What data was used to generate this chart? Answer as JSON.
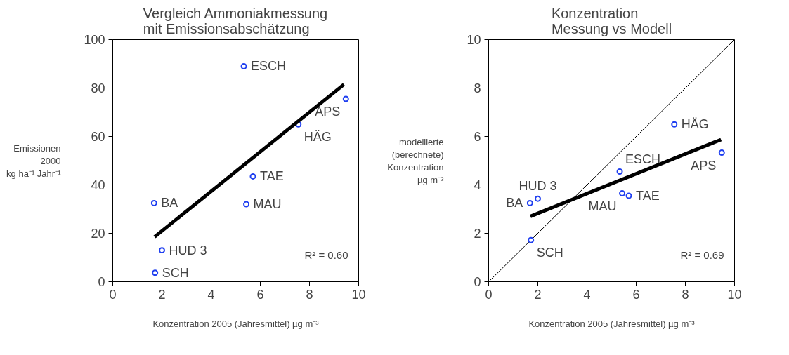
{
  "chart_data": [
    {
      "type": "scatter",
      "title": "Vergleich Ammoniakmessung\nmit Emissionsabschätzung",
      "xlabel": "Konzentration 2005 (Jahresmittel) µg m⁻³",
      "ylabel": "Emissionen\n2000\nkg ha⁻¹ Jahr⁻¹",
      "xlim": [
        0,
        10
      ],
      "ylim": [
        0,
        100
      ],
      "xticks": [
        0,
        2,
        4,
        6,
        8,
        10
      ],
      "yticks": [
        0,
        20,
        40,
        60,
        80,
        100
      ],
      "grid": false,
      "series": [
        {
          "color": "#1f3ff0",
          "marker": "circle",
          "x": [
            5.33,
            9.48,
            7.55,
            5.7,
            1.68,
            5.43,
            2.0,
            1.72
          ],
          "values": [
            89,
            75.5,
            65,
            43.5,
            32.5,
            32,
            13,
            3.7
          ]
        },
        {
          "type": "line",
          "marker": "none",
          "color": "#000000",
          "x": [
            1.7,
            9.4
          ],
          "values": [
            18.5,
            81.5
          ]
        }
      ],
      "annotations": [
        {
          "text": "ESCH",
          "x": 5.33,
          "y": 89
        },
        {
          "text": "APS",
          "x": 9.48,
          "y": 75.5
        },
        {
          "text": "HÄG",
          "x": 7.55,
          "y": 65
        },
        {
          "text": "TAE",
          "x": 5.7,
          "y": 43.5
        },
        {
          "text": "BA",
          "x": 1.68,
          "y": 32.5
        },
        {
          "text": "MAU",
          "x": 5.43,
          "y": 32
        },
        {
          "text": "HUD 3",
          "x": 2.0,
          "y": 13
        },
        {
          "text": "SCH",
          "x": 1.72,
          "y": 3.7
        },
        "R² = 0.60"
      ]
    },
    {
      "type": "scatter",
      "title": "Konzentration\nMessung vs Modell",
      "xlabel": "Konzentration 2005 (Jahresmittel) µg m⁻³",
      "ylabel": "modellierte\n(berechnete)\nKonzentration\nµg m⁻³",
      "xlim": [
        0,
        10
      ],
      "ylim": [
        0,
        10
      ],
      "xticks": [
        0,
        2,
        4,
        6,
        8,
        10
      ],
      "yticks": [
        0,
        2,
        4,
        6,
        8,
        10
      ],
      "grid": false,
      "series": [
        {
          "type": "line",
          "marker": "none",
          "color": "#000000",
          "x": [
            0,
            10
          ],
          "values": [
            0,
            10
          ]
        },
        {
          "color": "#1f3ff0",
          "marker": "circle",
          "x": [
            7.55,
            9.48,
            5.33,
            2.0,
            1.68,
            5.43,
            5.7,
            1.72
          ],
          "values": [
            6.5,
            5.33,
            4.55,
            3.43,
            3.25,
            3.65,
            3.55,
            1.72
          ]
        },
        {
          "type": "line",
          "marker": "none",
          "color": "#000000",
          "x": [
            1.7,
            9.45
          ],
          "values": [
            2.7,
            5.87
          ]
        }
      ],
      "annotations": [
        {
          "text": "HÄG",
          "x": 7.55,
          "y": 6.5
        },
        {
          "text": "APS",
          "x": 9.48,
          "y": 5.33
        },
        {
          "text": "ESCH",
          "x": 5.33,
          "y": 4.55
        },
        {
          "text": "HUD 3",
          "x": 2.0,
          "y": 3.43
        },
        {
          "text": "BA",
          "x": 1.68,
          "y": 3.25
        },
        {
          "text": "MAU",
          "x": 5.43,
          "y": 3.65
        },
        {
          "text": "TAE",
          "x": 5.7,
          "y": 3.55
        },
        {
          "text": "SCH",
          "x": 1.72,
          "y": 1.72
        },
        "R² = 0.69"
      ]
    }
  ]
}
